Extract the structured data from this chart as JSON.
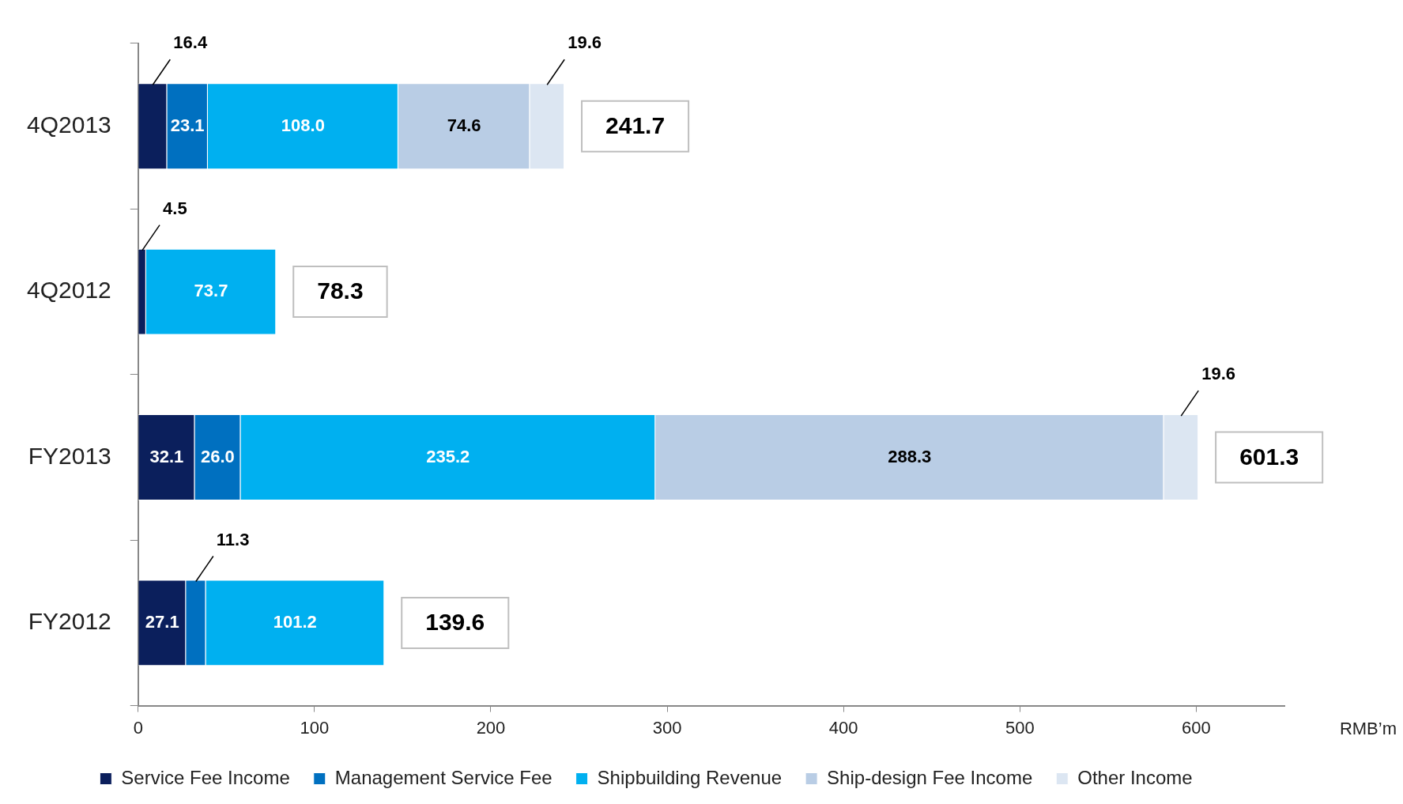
{
  "chart_data": {
    "type": "bar",
    "orientation": "horizontal",
    "stacked": true,
    "categories": [
      "4Q2013",
      "4Q2012",
      "FY2013",
      "FY2012"
    ],
    "series": [
      {
        "name": "Service Fee Income",
        "color": "#0b1f5c",
        "values": [
          16.4,
          4.5,
          32.1,
          27.1
        ],
        "value_labels": [
          "16.4",
          "4.5",
          "32.1",
          "27.1"
        ]
      },
      {
        "name": "Management Service Fee",
        "color": "#0070c0",
        "values": [
          23.1,
          null,
          26.0,
          11.3
        ],
        "value_labels": [
          "23.1",
          null,
          "26.0",
          "11.3"
        ]
      },
      {
        "name": "Shipbuilding Revenue",
        "color": "#00b0f0",
        "values": [
          108.0,
          73.7,
          235.2,
          101.2
        ],
        "value_labels": [
          "108.0",
          "73.7",
          "235.2",
          "101.2"
        ]
      },
      {
        "name": "Ship-design Fee Income",
        "color": "#b9cde5",
        "values": [
          74.6,
          null,
          288.3,
          null
        ],
        "value_labels": [
          "74.6",
          null,
          "288.3",
          null
        ]
      },
      {
        "name": "Other Income",
        "color": "#dce6f2",
        "values": [
          19.6,
          null,
          19.6,
          null
        ],
        "value_labels": [
          "19.6",
          null,
          "19.6",
          null
        ]
      }
    ],
    "totals": [
      "241.7",
      "78.3",
      "601.3",
      "139.6"
    ],
    "xlim": [
      0,
      650
    ],
    "xticks": [
      0,
      100,
      200,
      300,
      400,
      500,
      600
    ],
    "xlabel": "RMB’m",
    "grid": false,
    "legend": "bottom"
  }
}
